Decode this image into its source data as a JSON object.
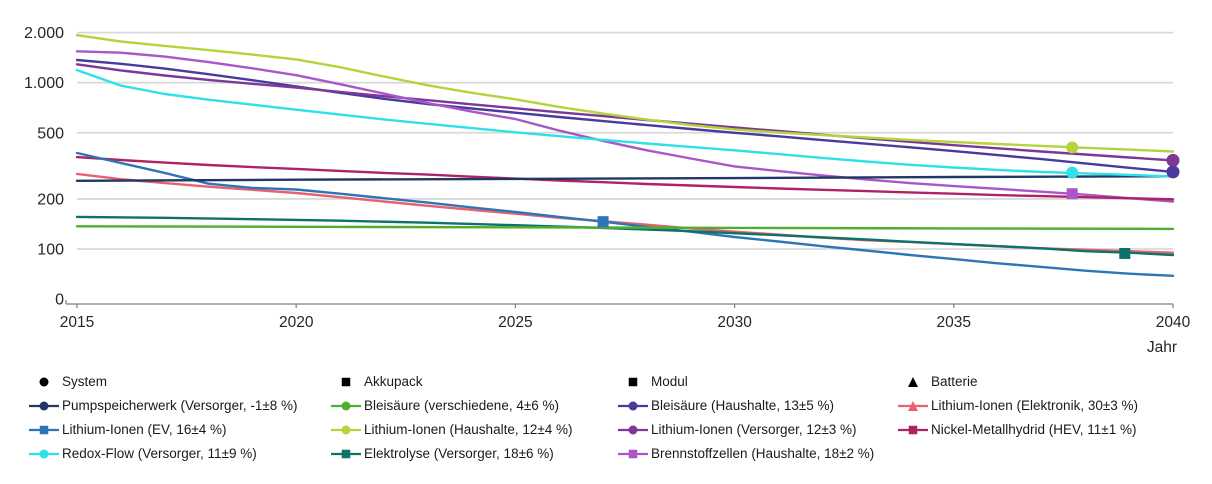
{
  "page": {
    "background": "#ffffff",
    "text_color": "#262626"
  },
  "chart_data": {
    "type": "line",
    "title": "",
    "xlabel": "Jahr",
    "ylabel": "",
    "x_ticks": [
      2015,
      2020,
      2025,
      2030,
      2035,
      2040
    ],
    "x_range": [
      2015,
      2040
    ],
    "y_scale": "log",
    "y_ticks": [
      {
        "label": "0",
        "value": 0
      },
      {
        "label": "100",
        "value": 100
      },
      {
        "label": "200",
        "value": 200
      },
      {
        "label": "500",
        "value": 500
      },
      {
        "label": "1.000",
        "value": 1000
      },
      {
        "label": "2.000",
        "value": 2000
      }
    ],
    "grid": "horizontal",
    "colors": {
      "grid": "#d9d9d9",
      "axis": "#7f7f7f",
      "label": "#262626"
    },
    "legend_position": "bottom",
    "series": [
      {
        "id": "bleisaeure-haushalte",
        "color": "#4a3a9c",
        "marker": "circle",
        "end_marker": true,
        "highlight": null,
        "points": [
          [
            2015,
            1370
          ],
          [
            2016,
            1300
          ],
          [
            2017,
            1215
          ],
          [
            2018,
            1125
          ],
          [
            2019,
            1035
          ],
          [
            2020,
            950
          ],
          [
            2021,
            870
          ],
          [
            2022,
            800
          ],
          [
            2023,
            745
          ],
          [
            2024,
            700
          ],
          [
            2025,
            660
          ],
          [
            2026,
            622
          ],
          [
            2027,
            588
          ],
          [
            2028,
            556
          ],
          [
            2029,
            527
          ],
          [
            2030,
            500
          ],
          [
            2031,
            476
          ],
          [
            2032,
            452
          ],
          [
            2033,
            430
          ],
          [
            2034,
            409
          ],
          [
            2035,
            388
          ],
          [
            2036,
            367
          ],
          [
            2037,
            347
          ],
          [
            2038,
            327
          ],
          [
            2039,
            308
          ],
          [
            2040,
            291
          ]
        ]
      },
      {
        "id": "lithium-ionen-versorger",
        "color": "#7d3896",
        "marker": "circle",
        "end_marker": true,
        "highlight": null,
        "points": [
          [
            2015,
            1290
          ],
          [
            2016,
            1185
          ],
          [
            2017,
            1105
          ],
          [
            2018,
            1040
          ],
          [
            2019,
            985
          ],
          [
            2020,
            935
          ],
          [
            2021,
            880
          ],
          [
            2022,
            830
          ],
          [
            2023,
            785
          ],
          [
            2024,
            742
          ],
          [
            2025,
            702
          ],
          [
            2026,
            664
          ],
          [
            2027,
            630
          ],
          [
            2028,
            597
          ],
          [
            2029,
            567
          ],
          [
            2030,
            538
          ],
          [
            2031,
            512
          ],
          [
            2032,
            487
          ],
          [
            2033,
            463
          ],
          [
            2034,
            441
          ],
          [
            2035,
            421
          ],
          [
            2036,
            403
          ],
          [
            2037,
            386
          ],
          [
            2038,
            370
          ],
          [
            2039,
            355
          ],
          [
            2040,
            341
          ]
        ]
      },
      {
        "id": "lithium-ionen-elektronik",
        "color": "#e7626e",
        "marker": "triangle",
        "end_marker": false,
        "highlight": null,
        "points": [
          [
            2015,
            283
          ],
          [
            2016,
            263
          ],
          [
            2017,
            249
          ],
          [
            2018,
            237
          ],
          [
            2019,
            227
          ],
          [
            2020,
            217
          ],
          [
            2021,
            205
          ],
          [
            2022,
            193
          ],
          [
            2023,
            182
          ],
          [
            2024,
            172
          ],
          [
            2025,
            163
          ],
          [
            2026,
            154
          ],
          [
            2027,
            147
          ],
          [
            2028,
            140
          ],
          [
            2029,
            133
          ],
          [
            2030,
            127
          ],
          [
            2031,
            122
          ],
          [
            2032,
            117
          ],
          [
            2033,
            113
          ],
          [
            2034,
            110
          ],
          [
            2035,
            107
          ],
          [
            2036,
            104
          ],
          [
            2037,
            101
          ],
          [
            2038,
            99
          ],
          [
            2039,
            97
          ],
          [
            2040,
            95
          ]
        ]
      },
      {
        "id": "brennstoffzellen",
        "color": "#aa55c8",
        "marker": "square",
        "end_marker": false,
        "highlight": [
          2037.7,
          215
        ],
        "points": [
          [
            2015,
            1545
          ],
          [
            2016,
            1515
          ],
          [
            2017,
            1435
          ],
          [
            2018,
            1330
          ],
          [
            2019,
            1220
          ],
          [
            2020,
            1110
          ],
          [
            2021,
            980
          ],
          [
            2022,
            860
          ],
          [
            2023,
            755
          ],
          [
            2024,
            670
          ],
          [
            2025,
            605
          ],
          [
            2026,
            515
          ],
          [
            2027,
            447
          ],
          [
            2028,
            392
          ],
          [
            2029,
            350
          ],
          [
            2030,
            314
          ],
          [
            2031,
            294
          ],
          [
            2032,
            277
          ],
          [
            2033,
            262
          ],
          [
            2034,
            249
          ],
          [
            2035,
            239
          ],
          [
            2036,
            230
          ],
          [
            2037,
            221
          ],
          [
            2038,
            212
          ],
          [
            2039,
            202
          ],
          [
            2040,
            193
          ]
        ]
      },
      {
        "id": "nickel-metallhydrid",
        "color": "#ae2366",
        "marker": "square",
        "end_marker": false,
        "highlight": null,
        "points": [
          [
            2015,
            357
          ],
          [
            2016,
            343
          ],
          [
            2017,
            331
          ],
          [
            2018,
            320
          ],
          [
            2019,
            311
          ],
          [
            2020,
            303
          ],
          [
            2021,
            295
          ],
          [
            2022,
            287
          ],
          [
            2023,
            280
          ],
          [
            2024,
            272
          ],
          [
            2025,
            265
          ],
          [
            2026,
            258
          ],
          [
            2027,
            252
          ],
          [
            2028,
            246
          ],
          [
            2029,
            241
          ],
          [
            2030,
            236
          ],
          [
            2031,
            231
          ],
          [
            2032,
            227
          ],
          [
            2033,
            223
          ],
          [
            2034,
            219
          ],
          [
            2035,
            215
          ],
          [
            2036,
            211
          ],
          [
            2037,
            208
          ],
          [
            2038,
            205
          ],
          [
            2039,
            202
          ],
          [
            2040,
            199
          ]
        ]
      },
      {
        "id": "lithium-ionen-ev",
        "color": "#2e75b6",
        "marker": "square",
        "end_marker": false,
        "highlight": [
          2027,
          146
        ],
        "points": [
          [
            2015,
            378
          ],
          [
            2016,
            329
          ],
          [
            2017,
            287
          ],
          [
            2018,
            247
          ],
          [
            2019,
            233
          ],
          [
            2020,
            228
          ],
          [
            2021,
            215
          ],
          [
            2022,
            202
          ],
          [
            2023,
            190
          ],
          [
            2024,
            178
          ],
          [
            2025,
            167
          ],
          [
            2026,
            156
          ],
          [
            2027,
            146
          ],
          [
            2028,
            136
          ],
          [
            2029,
            127
          ],
          [
            2030,
            118
          ],
          [
            2031,
            111
          ],
          [
            2032,
            104
          ],
          [
            2033,
            98
          ],
          [
            2034,
            92
          ],
          [
            2035,
            87
          ],
          [
            2036,
            82
          ],
          [
            2037,
            78
          ],
          [
            2038,
            74
          ],
          [
            2039,
            71
          ],
          [
            2040,
            69
          ]
        ]
      },
      {
        "id": "pumpspeicherwerk",
        "color": "#1f3864",
        "marker": "circle",
        "end_marker": false,
        "highlight": null,
        "points": [
          [
            2015,
            257
          ],
          [
            2020,
            261
          ],
          [
            2025,
            264
          ],
          [
            2030,
            267
          ],
          [
            2035,
            271
          ],
          [
            2040,
            274
          ]
        ]
      },
      {
        "id": "redox-flow",
        "color": "#2ee1e6",
        "marker": "circle",
        "end_marker": false,
        "highlight": [
          2037.7,
          288
        ],
        "points": [
          [
            2015,
            1190
          ],
          [
            2016,
            960
          ],
          [
            2017,
            855
          ],
          [
            2018,
            790
          ],
          [
            2019,
            737
          ],
          [
            2020,
            688
          ],
          [
            2021,
            643
          ],
          [
            2022,
            602
          ],
          [
            2023,
            566
          ],
          [
            2024,
            533
          ],
          [
            2025,
            503
          ],
          [
            2026,
            477
          ],
          [
            2027,
            453
          ],
          [
            2028,
            431
          ],
          [
            2029,
            411
          ],
          [
            2030,
            392
          ],
          [
            2031,
            372
          ],
          [
            2032,
            353
          ],
          [
            2033,
            336
          ],
          [
            2034,
            321
          ],
          [
            2035,
            309
          ],
          [
            2036,
            299
          ],
          [
            2037,
            291
          ],
          [
            2038,
            285
          ],
          [
            2039,
            279
          ],
          [
            2040,
            273
          ]
        ]
      },
      {
        "id": "elektrolyse",
        "color": "#0f7268",
        "marker": "square",
        "end_marker": false,
        "highlight": [
          2038.9,
          94
        ],
        "points": [
          [
            2015,
            156
          ],
          [
            2017,
            154
          ],
          [
            2019,
            151
          ],
          [
            2021,
            148
          ],
          [
            2023,
            144
          ],
          [
            2025,
            139
          ],
          [
            2027,
            134
          ],
          [
            2029,
            128
          ],
          [
            2031,
            121
          ],
          [
            2033,
            114
          ],
          [
            2035,
            107
          ],
          [
            2037,
            101
          ],
          [
            2038,
            97
          ],
          [
            2039,
            95
          ],
          [
            2040,
            92
          ]
        ]
      },
      {
        "id": "bleisaeure-verschiedene",
        "color": "#4fae32",
        "marker": "circle",
        "end_marker": false,
        "highlight": null,
        "points": [
          [
            2015,
            137
          ],
          [
            2020,
            136
          ],
          [
            2025,
            135
          ],
          [
            2030,
            134
          ],
          [
            2035,
            133
          ],
          [
            2040,
            132
          ]
        ]
      },
      {
        "id": "lithium-ionen-haushalte",
        "color": "#b4d43c",
        "marker": "circle",
        "end_marker": false,
        "highlight": [
          2037.7,
          408
        ],
        "points": [
          [
            2015,
            1930
          ],
          [
            2016,
            1770
          ],
          [
            2017,
            1665
          ],
          [
            2018,
            1570
          ],
          [
            2019,
            1475
          ],
          [
            2020,
            1380
          ],
          [
            2021,
            1240
          ],
          [
            2022,
            1090
          ],
          [
            2023,
            965
          ],
          [
            2024,
            870
          ],
          [
            2025,
            795
          ],
          [
            2026,
            715
          ],
          [
            2027,
            652
          ],
          [
            2028,
            600
          ],
          [
            2029,
            556
          ],
          [
            2030,
            524
          ],
          [
            2031,
            502
          ],
          [
            2032,
            484
          ],
          [
            2033,
            468
          ],
          [
            2034,
            453
          ],
          [
            2035,
            440
          ],
          [
            2036,
            428
          ],
          [
            2037,
            417
          ],
          [
            2038,
            406
          ],
          [
            2039,
            396
          ],
          [
            2040,
            386
          ]
        ]
      }
    ]
  },
  "legend": {
    "columns": [
      {
        "category": {
          "label": "System",
          "marker": "circle"
        },
        "items": [
          {
            "id": "pumpspeicherwerk",
            "label": "Pumpspeicherwerk (Versorger, -1±8 %)"
          },
          {
            "id": "lithium-ionen-ev",
            "label": "Lithium-Ionen (EV, 16±4 %)"
          },
          {
            "id": "redox-flow",
            "label": "Redox-Flow (Versorger, 11±9 %)"
          }
        ]
      },
      {
        "category": {
          "label": "Akkupack",
          "marker": "square"
        },
        "items": [
          {
            "id": "bleisaeure-verschiedene",
            "label": "Bleisäure (verschiedene, 4±6 %)"
          },
          {
            "id": "lithium-ionen-haushalte",
            "label": "Lithium-Ionen (Haushalte, 12±4 %)"
          },
          {
            "id": "elektrolyse",
            "label": "Elektrolyse (Versorger, 18±6 %)"
          }
        ]
      },
      {
        "category": {
          "label": "Modul",
          "marker": "square"
        },
        "items": [
          {
            "id": "bleisaeure-haushalte",
            "label": "Bleisäure (Haushalte, 13±5 %)"
          },
          {
            "id": "lithium-ionen-versorger",
            "label": "Lithium-Ionen (Versorger, 12±3 %)"
          },
          {
            "id": "brennstoffzellen",
            "label": "Brennstoffzellen (Haushalte, 18±2 %)"
          }
        ]
      },
      {
        "category": {
          "label": "Batterie",
          "marker": "triangle"
        },
        "items": [
          {
            "id": "lithium-ionen-elektronik",
            "label": "Lithium-Ionen (Elektronik, 30±3 %)"
          },
          {
            "id": "nickel-metallhydrid",
            "label": "Nickel-Metallhydrid (HEV, 11±1 %)"
          }
        ]
      }
    ]
  }
}
